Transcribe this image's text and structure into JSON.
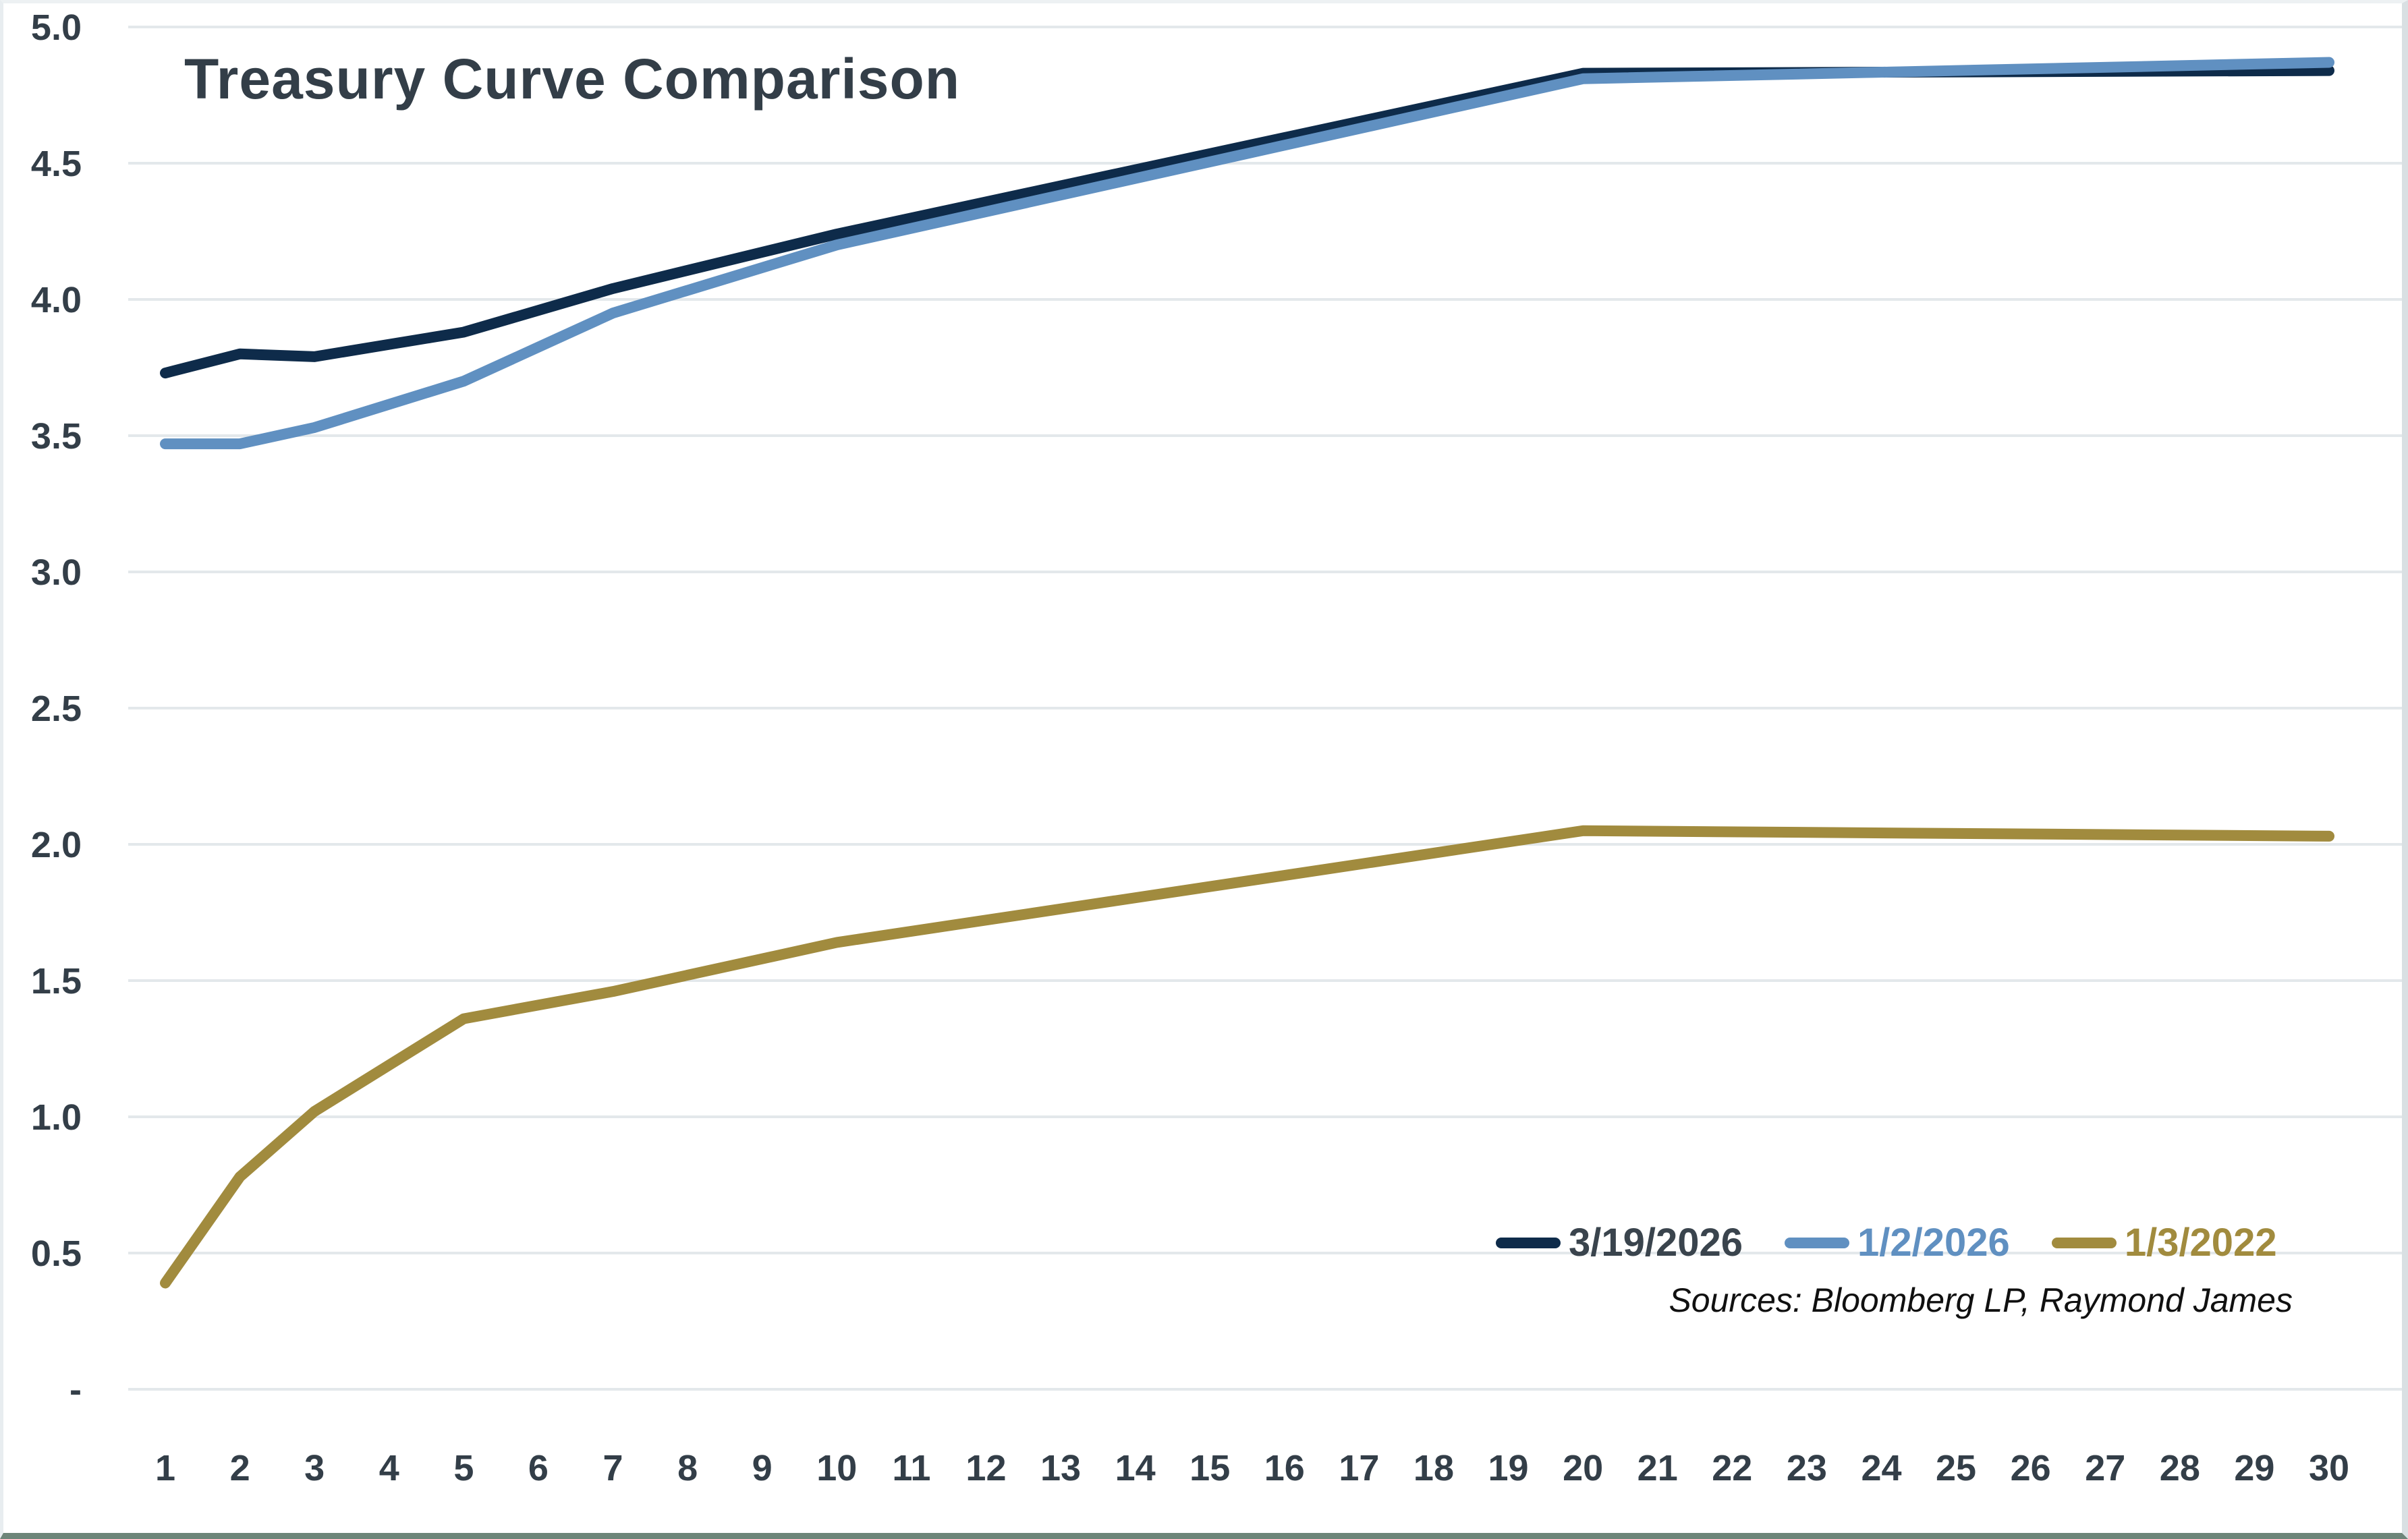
{
  "chart_data": {
    "type": "line",
    "title": "Treasury Curve Comparison",
    "source_note": "Sources: Bloomberg LP, Raymond James",
    "xlabel": "",
    "ylabel": "",
    "xlim": [
      1,
      30
    ],
    "ylim": [
      0,
      5
    ],
    "grid": "horizontal",
    "legend_position": "bottom-right-inside",
    "axis_text_color": "#333e48",
    "gridline_color": "#e3e8eb",
    "y_ticks": [
      {
        "label": "5.0",
        "value": 5.0
      },
      {
        "label": "4.5",
        "value": 4.5
      },
      {
        "label": "4.0",
        "value": 4.0
      },
      {
        "label": "3.5",
        "value": 3.5
      },
      {
        "label": "3.0",
        "value": 3.0
      },
      {
        "label": "2.5",
        "value": 2.5
      },
      {
        "label": "2.0",
        "value": 2.0
      },
      {
        "label": "1.5",
        "value": 1.5
      },
      {
        "label": "1.0",
        "value": 1.0
      },
      {
        "label": "0.5",
        "value": 0.5
      },
      {
        "label": "-",
        "value": 0.0
      }
    ],
    "x_ticks": [
      1,
      2,
      3,
      4,
      5,
      6,
      7,
      8,
      9,
      10,
      11,
      12,
      13,
      14,
      15,
      16,
      17,
      18,
      19,
      20,
      21,
      22,
      23,
      24,
      25,
      26,
      27,
      28,
      29,
      30
    ],
    "series": [
      {
        "name": "3/19/2026",
        "color": "#0e2b4a",
        "legend_text_color": "#3a444d",
        "x": [
          1,
          2,
          3,
          5,
          7,
          10,
          20,
          30
        ],
        "y": [
          3.73,
          3.8,
          3.79,
          3.88,
          4.04,
          4.24,
          4.83,
          4.84
        ]
      },
      {
        "name": "1/2/2026",
        "color": "#6090c1",
        "legend_text_color": "#6090c1",
        "x": [
          1,
          2,
          3,
          5,
          7,
          10,
          20,
          30
        ],
        "y": [
          3.47,
          3.47,
          3.53,
          3.7,
          3.95,
          4.2,
          4.81,
          4.87
        ]
      },
      {
        "name": "1/3/2022",
        "color": "#a18b3e",
        "legend_text_color": "#a18b3e",
        "x": [
          1,
          2,
          3,
          5,
          7,
          10,
          20,
          30
        ],
        "y": [
          0.39,
          0.78,
          1.02,
          1.36,
          1.46,
          1.64,
          2.05,
          2.03
        ]
      }
    ]
  }
}
